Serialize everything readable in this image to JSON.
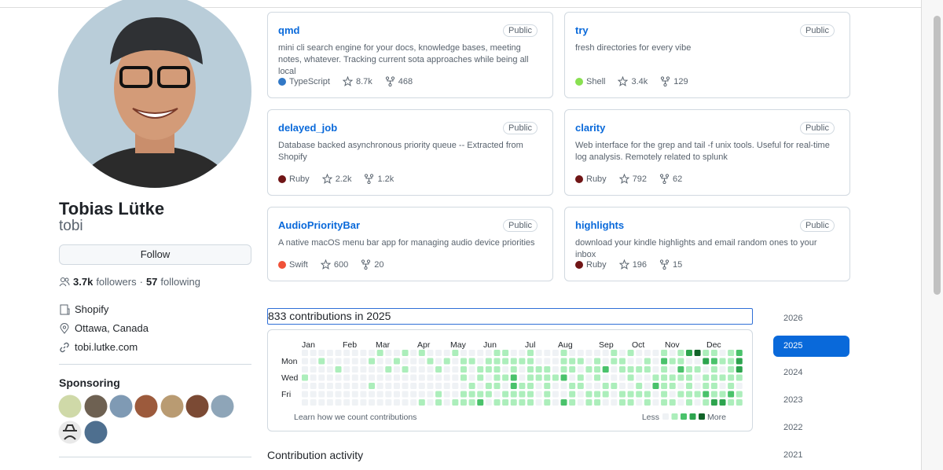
{
  "profile": {
    "name": "Tobias Lütke",
    "username": "tobi",
    "follow": "Follow",
    "followers_count": "3.7k",
    "followers_label": "followers",
    "following_count": "57",
    "following_label": "following",
    "company": "Shopify",
    "location": "Ottawa, Canada",
    "website": "tobi.lutke.com",
    "sponsoring": "Sponsoring"
  },
  "repos": [
    {
      "name": "qmd",
      "visibility": "Public",
      "description": "mini cli search engine for your docs, knowledge bases, meeting notes, whatever. Tracking current sota approaches while being all local",
      "language": "TypeScript",
      "language_color": "#3178c6",
      "stars": "8.7k",
      "forks": "468"
    },
    {
      "name": "try",
      "visibility": "Public",
      "description": "fresh directories for every vibe",
      "language": "Shell",
      "language_color": "#89e051",
      "stars": "3.4k",
      "forks": "129"
    },
    {
      "name": "delayed_job",
      "visibility": "Public",
      "description": "Database backed asynchronous priority queue -- Extracted from Shopify",
      "language": "Ruby",
      "language_color": "#701516",
      "stars": "2.2k",
      "forks": "1.2k"
    },
    {
      "name": "clarity",
      "visibility": "Public",
      "description": "Web interface for the grep and tail -f unix tools. Useful for real-time log analysis. Remotely related to splunk",
      "language": "Ruby",
      "language_color": "#701516",
      "stars": "792",
      "forks": "62"
    },
    {
      "name": "AudioPriorityBar",
      "visibility": "Public",
      "description": "A native macOS menu bar app for managing audio device priorities",
      "language": "Swift",
      "language_color": "#f05138",
      "stars": "600",
      "forks": "20"
    },
    {
      "name": "highlights",
      "visibility": "Public",
      "description": "download your kindle highlights and email random ones to your inbox",
      "language": "Ruby",
      "language_color": "#701516",
      "stars": "196",
      "forks": "15"
    }
  ],
  "contributions": {
    "heading": "833 contributions in 2025",
    "months": [
      "Jan",
      "Feb",
      "Mar",
      "Apr",
      "May",
      "Jun",
      "Jul",
      "Aug",
      "Sep",
      "Oct",
      "Nov",
      "Dec"
    ],
    "days": [
      "Mon",
      "Wed",
      "Fri"
    ],
    "level_colors": [
      "#eff2f5",
      "#aceebb",
      "#4ac26b",
      "#2da44e",
      "#116329"
    ],
    "levels": [
      "00000000010010100010000110010001000001010001013411012",
      "00100000100100010101101111110001110101100102110032113",
      "00001000001010001001011101011101101120111101021101013",
      "10000000000000000001010112011112010100010011111011111",
      "00000000100000000000101102110100110011001021101011010",
      "00000000000000001001111011110100101110111101011121121",
      "00000000000000101011120111110102101100110101101013311"
    ],
    "learn": "Learn how we count contributions",
    "less": "Less",
    "more": "More",
    "years": [
      "2026",
      "2025",
      "2024",
      "2023",
      "2022",
      "2021"
    ],
    "selected_year": 1
  },
  "activity_heading": "Contribution activity"
}
